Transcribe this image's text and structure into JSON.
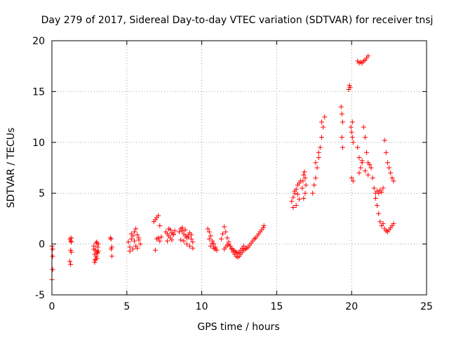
{
  "chart_data": {
    "type": "scatter",
    "title": "Day 279 of 2017, Sidereal Day-to-day VTEC variation (SDTVAR) for receiver tnsj",
    "xlabel": "GPS time / hours",
    "ylabel": "SDTVAR / TECUs",
    "xlim": [
      0,
      25
    ],
    "ylim": [
      -5,
      20
    ],
    "xticks": [
      0,
      5,
      10,
      15,
      20,
      25
    ],
    "yticks": [
      -5,
      0,
      5,
      10,
      15,
      20
    ],
    "xtick_labels": [
      "0",
      "5",
      "10",
      "15",
      "20",
      "25"
    ],
    "ytick_labels": [
      "-5",
      "0",
      "5",
      "10",
      "15",
      "20"
    ],
    "grid": true,
    "marker": "plus",
    "series": [
      {
        "name": "SDTVAR",
        "color": "#ff0000",
        "segments": [
          {
            "x": [
              0.0,
              0.05,
              0.05,
              0.0,
              0.05
            ],
            "y": [
              -0.2,
              -1.2,
              -2.5,
              -3.5,
              -0.5
            ]
          },
          {
            "x": [
              1.2,
              1.25,
              1.3,
              1.25,
              1.3,
              1.2,
              1.25,
              1.3
            ],
            "y": [
              0.5,
              0.3,
              0.2,
              -0.6,
              -0.8,
              -1.7,
              -2.0,
              0.6
            ]
          },
          {
            "x": [
              2.8,
              2.85,
              2.9,
              2.95,
              3.0,
              3.05,
              3.1,
              2.85,
              2.9,
              2.95,
              3.0,
              3.05,
              2.8,
              2.9,
              3.0,
              3.1
            ],
            "y": [
              -0.5,
              -1.0,
              -1.5,
              -1.2,
              -0.8,
              -0.3,
              0.0,
              -1.8,
              -0.6,
              0.1,
              -1.4,
              -0.9,
              -0.2,
              -1.6,
              0.2,
              -0.7
            ]
          },
          {
            "x": [
              3.9,
              3.95,
              4.0,
              3.95,
              4.0
            ],
            "y": [
              0.6,
              0.5,
              -0.3,
              -0.5,
              -1.2
            ]
          },
          {
            "x": [
              5.1,
              5.2,
              5.3,
              5.4,
              5.5,
              5.6,
              5.7,
              5.8,
              5.9,
              5.2,
              5.4,
              5.6,
              5.8,
              5.3,
              5.5,
              5.7
            ],
            "y": [
              0.2,
              -0.3,
              0.5,
              0.8,
              1.2,
              1.5,
              0.9,
              0.4,
              0.0,
              -0.7,
              -0.5,
              -0.2,
              0.6,
              1.0,
              0.3,
              -0.4
            ]
          },
          {
            "x": [
              6.8,
              6.9,
              7.0,
              7.1,
              7.2,
              7.3,
              7.1,
              7.2,
              6.9,
              7.0
            ],
            "y": [
              2.2,
              2.4,
              2.6,
              2.8,
              1.8,
              0.7,
              0.6,
              0.3,
              -0.6,
              0.5
            ]
          },
          {
            "x": [
              7.6,
              7.7,
              7.8,
              7.9,
              8.0,
              8.1,
              8.2,
              7.7,
              7.9,
              8.1,
              7.8,
              8.0
            ],
            "y": [
              1.2,
              1.0,
              0.8,
              1.4,
              1.1,
              0.9,
              1.3,
              0.3,
              0.6,
              1.0,
              1.5,
              0.4
            ]
          },
          {
            "x": [
              8.5,
              8.6,
              8.7,
              8.8,
              8.9,
              9.0,
              9.1,
              9.2,
              9.3,
              9.4,
              8.6,
              8.8,
              9.0,
              9.2,
              9.4,
              8.7,
              8.9,
              9.1,
              9.3
            ],
            "y": [
              1.2,
              1.5,
              1.3,
              1.0,
              0.8,
              0.6,
              0.9,
              1.1,
              0.5,
              0.2,
              0.4,
              0.3,
              0.0,
              -0.2,
              -0.4,
              1.6,
              1.4,
              0.7,
              0.9
            ]
          },
          {
            "x": [
              10.4,
              10.5,
              10.6,
              10.7,
              10.8,
              10.9,
              11.0,
              10.5,
              10.7,
              10.9,
              10.6,
              10.8
            ],
            "y": [
              1.5,
              1.2,
              0.8,
              0.3,
              0.0,
              -0.3,
              -0.6,
              0.5,
              0.1,
              -0.5,
              -0.2,
              -0.4
            ]
          },
          {
            "x": [
              11.3,
              11.4,
              11.5,
              11.6,
              11.7,
              11.8,
              11.9,
              12.0,
              12.1,
              12.2,
              12.3,
              12.4,
              12.5,
              12.6,
              12.7,
              12.8,
              12.9,
              13.0
            ],
            "y": [
              0.5,
              1.0,
              1.7,
              1.2,
              0.6,
              0.2,
              -0.2,
              -0.5,
              -0.8,
              -1.0,
              -1.2,
              -1.3,
              -1.2,
              -1.0,
              -0.8,
              -0.6,
              -0.5,
              -0.4
            ]
          },
          {
            "x": [
              11.5,
              11.6,
              11.7,
              11.8,
              11.9,
              12.0,
              12.1,
              12.2,
              12.3,
              12.4,
              12.5,
              12.6,
              12.7,
              12.8
            ],
            "y": [
              -0.5,
              -0.3,
              -0.1,
              0.0,
              -0.2,
              -0.4,
              -0.6,
              -0.7,
              -0.8,
              -0.9,
              -0.8,
              -0.6,
              -0.4,
              -0.2
            ]
          },
          {
            "x": [
              13.1,
              13.2,
              13.3,
              13.4,
              13.5,
              13.6,
              13.7,
              13.8,
              13.9,
              14.0,
              14.1,
              14.15
            ],
            "y": [
              -0.3,
              -0.1,
              0.1,
              0.3,
              0.5,
              0.6,
              0.8,
              1.0,
              1.2,
              1.4,
              1.6,
              1.8
            ]
          },
          {
            "x": [
              16.0,
              16.1,
              16.2,
              16.3,
              16.4,
              16.5,
              16.6,
              16.1,
              16.3,
              16.5,
              16.2,
              16.4
            ],
            "y": [
              4.2,
              4.6,
              5.0,
              5.4,
              5.8,
              6.0,
              6.2,
              3.6,
              3.8,
              4.4,
              5.2,
              4.9
            ]
          },
          {
            "x": [
              16.7,
              16.75,
              16.8,
              16.85,
              16.9,
              16.95,
              16.8,
              16.9
            ],
            "y": [
              5.5,
              6.2,
              6.8,
              7.1,
              6.5,
              5.8,
              4.5,
              5.0
            ]
          },
          {
            "x": [
              17.4,
              17.5,
              17.6,
              17.7,
              17.8,
              17.9,
              18.0,
              18.1,
              18.2,
              17.6,
              17.8,
              18.0
            ],
            "y": [
              5.0,
              5.8,
              6.5,
              7.5,
              8.5,
              9.5,
              10.5,
              11.5,
              12.5,
              8.0,
              9.0,
              12.0
            ]
          },
          {
            "x": [
              19.3,
              19.35,
              19.4,
              19.35,
              19.4
            ],
            "y": [
              13.5,
              12.8,
              12.0,
              10.5,
              9.5
            ]
          },
          {
            "x": [
              19.8,
              19.85,
              19.9,
              19.95,
              20.0,
              20.05,
              20.1,
              20.0,
              20.1,
              20.05
            ],
            "y": [
              15.2,
              15.6,
              15.4,
              11.5,
              11.0,
              10.5,
              10.0,
              6.5,
              6.2,
              12.0
            ]
          },
          {
            "x": [
              20.4,
              20.5,
              20.6,
              20.7,
              20.8,
              20.9,
              21.0,
              21.1
            ],
            "y": [
              18.0,
              17.8,
              17.9,
              17.8,
              18.0,
              18.1,
              18.3,
              18.5
            ]
          },
          {
            "x": [
              20.4,
              20.5,
              20.6,
              20.7,
              20.8,
              20.9,
              21.0,
              21.1,
              21.2,
              21.3,
              20.5,
              20.7,
              20.9,
              21.1
            ],
            "y": [
              9.5,
              8.5,
              7.5,
              8.0,
              11.5,
              10.5,
              9.0,
              8.0,
              7.8,
              7.5,
              7.0,
              8.2,
              7.2,
              6.8
            ]
          },
          {
            "x": [
              21.3,
              21.4,
              21.5,
              21.6,
              21.7,
              21.8,
              21.9,
              22.0,
              22.1,
              22.2,
              22.3,
              22.4,
              22.5,
              22.6,
              22.7,
              22.8
            ],
            "y": [
              7.5,
              6.5,
              5.5,
              4.5,
              3.8,
              3.0,
              2.2,
              1.8,
              2.0,
              1.5,
              1.3,
              1.2,
              1.4,
              1.6,
              1.8,
              2.0
            ]
          },
          {
            "x": [
              21.6,
              21.7,
              21.8,
              21.9,
              22.0,
              22.1,
              22.2,
              22.3,
              22.4,
              22.5,
              22.6,
              22.7,
              22.8
            ],
            "y": [
              5.0,
              5.2,
              5.0,
              5.3,
              5.1,
              5.5,
              10.2,
              9.0,
              8.0,
              7.5,
              7.0,
              6.5,
              6.2
            ]
          }
        ]
      }
    ]
  }
}
